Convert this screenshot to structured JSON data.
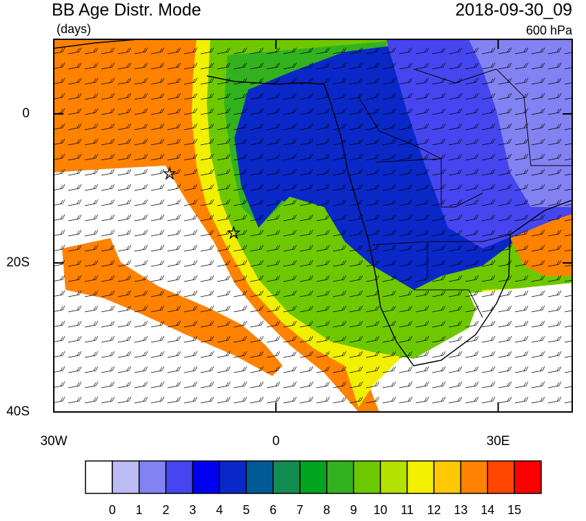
{
  "title": "BB Age Distr. Mode",
  "units": "(days)",
  "date": "2018-09-30_09",
  "level": "600 hPa",
  "axes": {
    "xlim": [
      -30,
      40
    ],
    "xticks": [
      {
        "value": -30,
        "label": "30W"
      },
      0,
      {
        "value": 30,
        "label": "30E"
      }
    ],
    "ylim": [
      -40,
      10
    ],
    "yticks": [
      0,
      {
        "value": -20,
        "label": "20S"
      },
      {
        "value": -40,
        "label": "40S"
      }
    ]
  },
  "colorbar": {
    "levels": [
      0,
      1,
      2,
      3,
      4,
      5,
      6,
      7,
      8,
      9,
      10,
      11,
      12,
      13,
      14,
      15
    ],
    "colors": [
      "#ffffff",
      "#bcbcf5",
      "#8282f2",
      "#4646f0",
      "#0000f0",
      "#0a28c8",
      "#005a96",
      "#128c50",
      "#00a41e",
      "#32b21e",
      "#6ec800",
      "#b4e000",
      "#f0f000",
      "#ffc800",
      "#ff8200",
      "#ff4600",
      "#ff0000"
    ]
  }
}
